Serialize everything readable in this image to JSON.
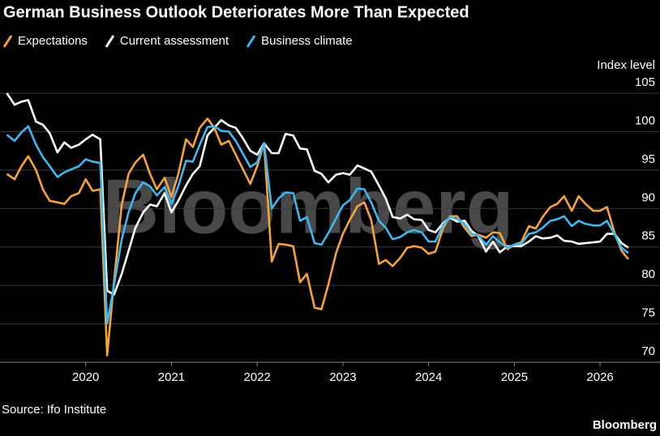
{
  "chart_data": {
    "type": "line",
    "title": "German Business Outlook Deteriorates More Than Expected",
    "y_axis_title": "Index level",
    "source": "Source: Ifo Institute",
    "watermark": "Bloomberg",
    "logo": "Bloomberg",
    "x": [
      2019.08,
      2019.17,
      2019.25,
      2019.33,
      2019.42,
      2019.5,
      2019.58,
      2019.67,
      2019.75,
      2019.83,
      2019.92,
      2020,
      2020.08,
      2020.17,
      2020.25,
      2020.33,
      2020.42,
      2020.5,
      2020.58,
      2020.67,
      2020.75,
      2020.83,
      2020.92,
      2021,
      2021.08,
      2021.17,
      2021.25,
      2021.33,
      2021.42,
      2021.5,
      2021.58,
      2021.67,
      2021.75,
      2021.83,
      2021.92,
      2022,
      2022.08,
      2022.17,
      2022.25,
      2022.33,
      2022.42,
      2022.5,
      2022.58,
      2022.67,
      2022.75,
      2022.83,
      2022.92,
      2023,
      2023.08,
      2023.17,
      2023.25,
      2023.33,
      2023.42,
      2023.5,
      2023.58,
      2023.67,
      2023.75,
      2023.83,
      2023.92,
      2024,
      2024.08,
      2024.17,
      2024.25,
      2024.33,
      2024.42,
      2024.5,
      2024.58,
      2024.67,
      2024.75,
      2024.83,
      2024.92,
      2025,
      2025.08,
      2025.17,
      2025.25,
      2025.33,
      2025.42,
      2025.5,
      2025.58,
      2025.67,
      2025.75,
      2025.83,
      2025.92,
      2026,
      2026.08,
      2026.17,
      2026.25,
      2026.33
    ],
    "series": [
      {
        "name": "Expectations",
        "color": "#f5a33a",
        "values": [
          94.5,
          93.8,
          95.5,
          96.8,
          95,
          92.5,
          91,
          90.8,
          90.6,
          91.6,
          92,
          93.8,
          92.3,
          92.5,
          70.9,
          80.5,
          90.5,
          94.5,
          96,
          97,
          94.5,
          92.5,
          94,
          91.5,
          94.5,
          99,
          98,
          100.5,
          101.7,
          100.5,
          98.3,
          98.8,
          97,
          95.2,
          93.2,
          95.5,
          98.5,
          83.1,
          85.4,
          85.3,
          85.1,
          80.4,
          81.5,
          77.1,
          76.9,
          80.1,
          84.2,
          86.7,
          88.5,
          90.3,
          90.8,
          88.5,
          82.8,
          83.3,
          82.5,
          83.6,
          84.9,
          85.1,
          84.9,
          84.1,
          84.4,
          87.5,
          89,
          89,
          87.5,
          86.4,
          86.6,
          86.2,
          86.9,
          86.8,
          84.7,
          85.3,
          85.6,
          87.7,
          87.4,
          88.9,
          90.2,
          90.6,
          91.6,
          89.7,
          91.6,
          90.6,
          89.7,
          89.7,
          90.2,
          86.8,
          84.5,
          83.4
        ]
      },
      {
        "name": "Current assessment",
        "color": "#ffffff",
        "values": [
          105,
          103.5,
          103.9,
          104.1,
          101.3,
          100.9,
          99.8,
          97.3,
          98.6,
          97.9,
          98.3,
          99,
          99.6,
          99,
          79.3,
          78.8,
          81.5,
          84.5,
          87.5,
          89.5,
          90.5,
          90.3,
          92,
          89.5,
          91,
          93,
          94.5,
          95.5,
          99.5,
          100.5,
          101.5,
          100.8,
          100.5,
          99.2,
          97.5,
          97,
          98.5,
          97.2,
          97.2,
          99.7,
          99.5,
          97.8,
          97.7,
          94.9,
          94.5,
          93.4,
          94.4,
          94.6,
          94.4,
          95.6,
          95.2,
          94.8,
          93,
          91.3,
          88.9,
          88.7,
          89.2,
          88.6,
          88.5,
          87.2,
          86.9,
          88.1,
          88.8,
          88.3,
          88.4,
          87.1,
          86.4,
          84.4,
          85.7,
          84.3,
          85.1,
          85.1,
          85.1,
          85.7,
          86.4,
          86.1,
          86.2,
          86.5,
          85.8,
          85.7,
          85.4,
          85.5,
          85.6,
          85.7,
          86.7,
          86.7,
          85.5,
          84.9
        ]
      },
      {
        "name": "Business climate",
        "color": "#3db8f0",
        "values": [
          99.6,
          98.8,
          99.9,
          100.7,
          98.3,
          96.7,
          95.5,
          94.1,
          94.7,
          95.1,
          95.5,
          96.4,
          96.1,
          95.9,
          75,
          80,
          86,
          89.5,
          92,
          93.4,
          92.9,
          91.7,
          92.8,
          90.6,
          92.9,
          96.2,
          96.1,
          98.3,
          100.6,
          100.7,
          100.1,
          100,
          98.8,
          97.2,
          95.4,
          96,
          98.5,
          90,
          91.3,
          92.1,
          92,
          88.4,
          88.9,
          85.5,
          85.3,
          86.8,
          88.7,
          90.4,
          91.1,
          92.6,
          92.5,
          90.8,
          88.4,
          87.5,
          86,
          86.3,
          86.9,
          87.2,
          86.9,
          85.7,
          85.7,
          87.9,
          88.9,
          88.6,
          88,
          86.7,
          86.5,
          85.3,
          86.4,
          85.6,
          84.9,
          85.3,
          85.4,
          86.7,
          86.9,
          87.5,
          88.4,
          88.6,
          89,
          87.7,
          88.4,
          88,
          87.8,
          87.8,
          88.4,
          86.6,
          84.9,
          84.2
        ]
      }
    ],
    "xlim": [
      2019,
      2026.33
    ],
    "xticks": [
      2020,
      2021,
      2022,
      2023,
      2024,
      2025,
      2026
    ],
    "ylim": [
      70,
      105
    ],
    "yticks": [
      70,
      75,
      80,
      85,
      90,
      95,
      100,
      105
    ],
    "grid": true
  }
}
